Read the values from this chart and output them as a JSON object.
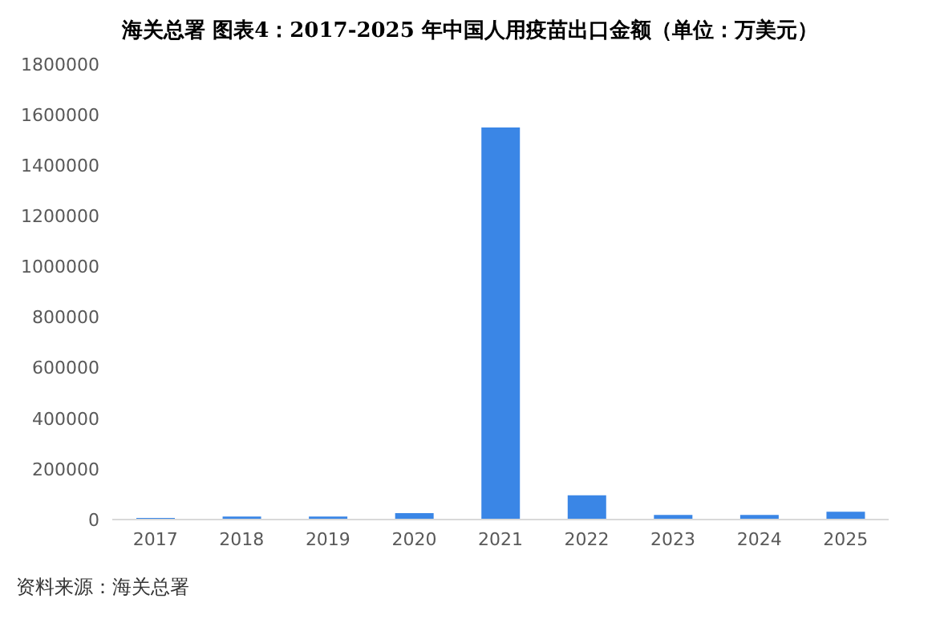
{
  "chart_data": {
    "type": "bar",
    "title": "海关总署 图表4：2017-2025 年中国人用疫苗出口金额（单位：万美元）",
    "categories": [
      "2017",
      "2018",
      "2019",
      "2020",
      "2021",
      "2022",
      "2023",
      "2024",
      "2025"
    ],
    "values": [
      6000,
      12000,
      12000,
      25000,
      1550000,
      96000,
      18000,
      18000,
      31000
    ],
    "color": "#3a86e6",
    "ylim": [
      0,
      1800000
    ],
    "yticks": [
      0,
      200000,
      400000,
      600000,
      800000,
      1000000,
      1200000,
      1400000,
      1600000,
      1800000
    ],
    "grid": false,
    "annotations": [
      "资料来源：海关总署"
    ]
  }
}
